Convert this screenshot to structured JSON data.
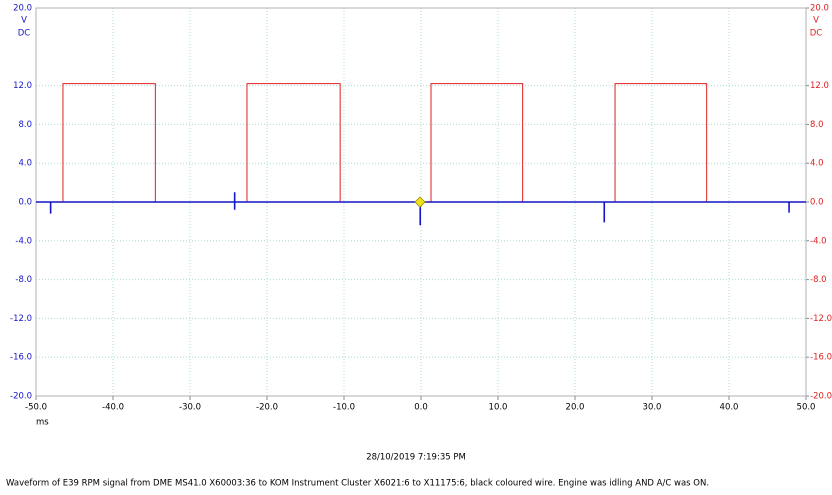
{
  "chart_data": {
    "type": "line",
    "xlim": [
      -50,
      50
    ],
    "ylim": [
      -20,
      20
    ],
    "y2lim": [
      -20,
      20
    ],
    "xticks": [
      {
        "value": -50,
        "label": "-50.0"
      },
      {
        "value": -40,
        "label": "-40.0"
      },
      {
        "value": -30,
        "label": "-30.0"
      },
      {
        "value": -20,
        "label": "-20.0"
      },
      {
        "value": -10,
        "label": "-10.0"
      },
      {
        "value": 0,
        "label": "0.0"
      },
      {
        "value": 10,
        "label": "10.0"
      },
      {
        "value": 20,
        "label": "20.0"
      },
      {
        "value": 30,
        "label": "30.0"
      },
      {
        "value": 40,
        "label": "40.0"
      },
      {
        "value": 50,
        "label": "50.0"
      }
    ],
    "yticks": [
      {
        "value": 20,
        "label": "20.0"
      },
      {
        "value": 12,
        "label": "12.0"
      },
      {
        "value": 8,
        "label": "8.0"
      },
      {
        "value": 4,
        "label": "4.0"
      },
      {
        "value": 0,
        "label": "0.0"
      },
      {
        "value": -4,
        "label": "-4.0"
      },
      {
        "value": -8,
        "label": "-8.0"
      },
      {
        "value": -12,
        "label": "-12.0"
      },
      {
        "value": -16,
        "label": "-16.0"
      },
      {
        "value": -20,
        "label": "-20.0"
      }
    ],
    "y2ticks": [
      {
        "value": 20,
        "label": "20.0"
      },
      {
        "value": 12,
        "label": "12.0"
      },
      {
        "value": 8,
        "label": "8.0"
      },
      {
        "value": 4,
        "label": "4.0"
      },
      {
        "value": 0,
        "label": "0.0"
      },
      {
        "value": -4,
        "label": "-4.0"
      },
      {
        "value": -8,
        "label": "-8.0"
      },
      {
        "value": -12,
        "label": "-12.0"
      },
      {
        "value": -16,
        "label": "-16.0"
      },
      {
        "value": -20,
        "label": "-20.0"
      }
    ],
    "x_label": "ms",
    "y_unit": "V",
    "y_mode": "DC",
    "y2_unit": "V",
    "y2_mode": "DC",
    "timestamp": "28/10/2019 7:19:35 PM",
    "caption": "Waveform of E39 RPM signal from DME MS41.0 X60003:36 to KOM Instrument Cluster X6021:6 to X11175:6, black coloured wire. Engine was idling AND A/C was ON.",
    "grid": true,
    "left_color": "#1515c8",
    "right_color": "#e02020",
    "series": [
      {
        "color": "#e02020",
        "axis": "y2",
        "x": [
          -50,
          -46.5,
          -46.5,
          -34.5,
          -34.5,
          -22.6,
          -22.6,
          -10.5,
          -10.5,
          1.3,
          1.3,
          13.2,
          13.2,
          25.2,
          25.2,
          37.1,
          37.1,
          50
        ],
        "values": [
          0,
          0,
          12.2,
          12.2,
          0,
          0,
          12.2,
          12.2,
          0,
          0,
          12.2,
          12.2,
          0,
          0,
          12.2,
          12.2,
          0,
          0
        ]
      },
      {
        "color": "#1515c8",
        "x": [
          -50,
          -48.1,
          -48.1,
          -48.1,
          -24.2,
          -24.2,
          -24.2,
          -24.2,
          -0.1,
          -0.1,
          -0.1,
          23.8,
          23.8,
          23.8,
          47.8,
          47.8,
          47.8,
          50
        ],
        "values": [
          0,
          0,
          -1.2,
          0,
          0,
          1.0,
          -0.8,
          0,
          0,
          -2.4,
          0,
          0,
          -2.1,
          0,
          0,
          -1.1,
          0,
          0
        ]
      }
    ]
  }
}
